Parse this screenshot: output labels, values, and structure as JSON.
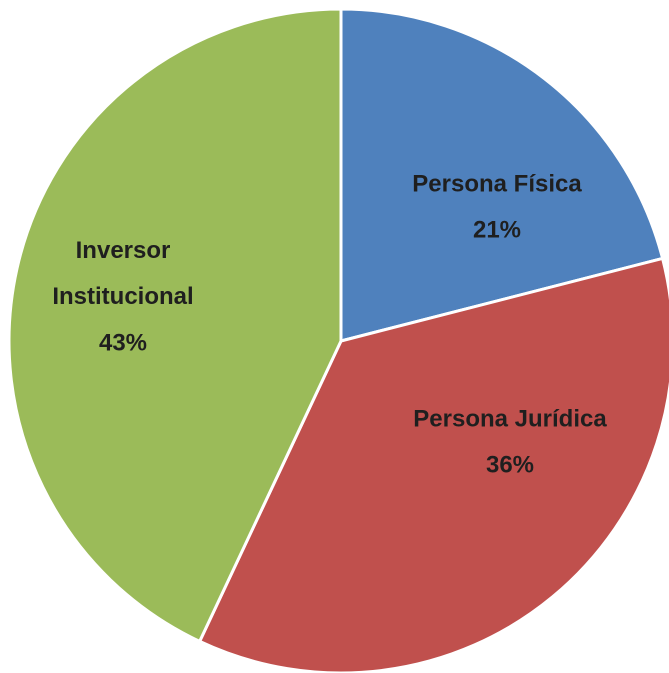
{
  "chart_data": {
    "type": "pie",
    "categories": [
      "Persona Física",
      "Persona Jurídica",
      "Inversor Institucional"
    ],
    "values": [
      21,
      36,
      43
    ],
    "value_labels": [
      "21%",
      "36%",
      "43%"
    ],
    "colors": [
      "#4f81bd",
      "#c0504d",
      "#9bbb59"
    ]
  }
}
